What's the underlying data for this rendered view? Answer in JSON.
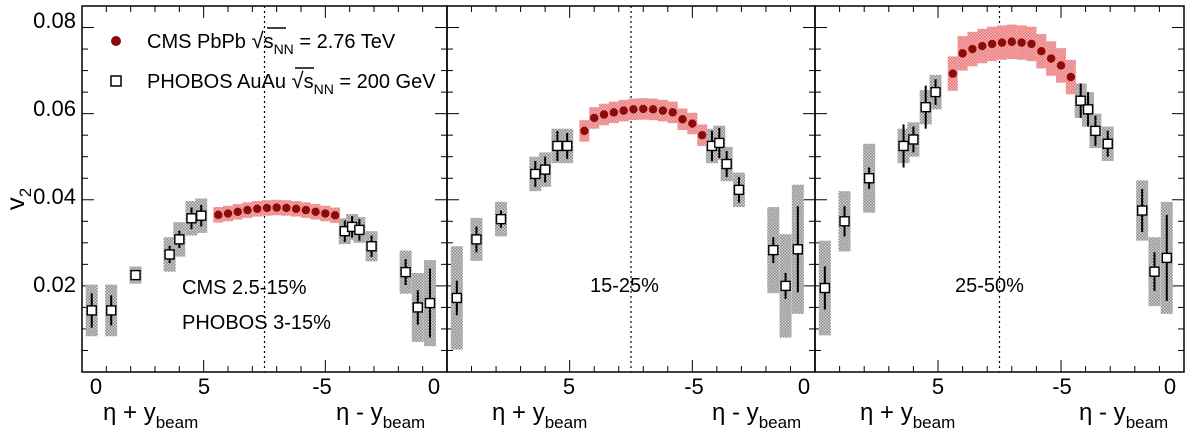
{
  "chart_data": {
    "type": "scatter",
    "ylabel": "v",
    "ylabel_sub": "2",
    "ylim": [
      0,
      0.085
    ],
    "yticks": [
      "0.02",
      "0.04",
      "0.06",
      "0.08"
    ],
    "xlabel_left": "η + y",
    "xlabel_right": "η - y",
    "xlabel_sub": "beam",
    "xticks_left": [
      "0",
      "5"
    ],
    "xticks_right": [
      "-5",
      "0"
    ],
    "legend": {
      "cms": {
        "pre": "CMS PbPb ",
        "s": "s",
        "sub": "NN",
        "post": " = 2.76 TeV",
        "color": "#8b0a0a"
      },
      "phobos": {
        "pre": "PHOBOS AuAu ",
        "s": "s",
        "sub": "NN",
        "post": " = 200 GeV"
      }
    },
    "colors": {
      "cms_marker": "#8b0a0a",
      "cms_band": "#f08080",
      "phobos_band": "#b5b5b5"
    },
    "panels": [
      {
        "labels": [
          "CMS 2.5-15%",
          "PHOBOS 3-15%"
        ],
        "cms": {
          "x": [
            5.6,
            6.0,
            6.4,
            6.8,
            7.2,
            7.6,
            8.0,
            8.4,
            8.8,
            9.2,
            9.6,
            10.0,
            10.4
          ],
          "y": [
            0.0365,
            0.0368,
            0.0372,
            0.0376,
            0.0379,
            0.0381,
            0.0382,
            0.0381,
            0.0379,
            0.0376,
            0.0372,
            0.0368,
            0.0364
          ],
          "sys": 0.0018
        },
        "phobos": {
          "x": [
            0.4,
            1.2,
            2.2,
            3.6,
            4.0,
            4.5,
            4.9,
            10.8,
            11.1,
            11.4,
            11.9,
            13.3,
            13.8,
            14.3
          ],
          "y": [
            0.0143,
            0.0143,
            0.0225,
            0.0273,
            0.0308,
            0.0357,
            0.0363,
            0.0327,
            0.0337,
            0.033,
            0.0292,
            0.0232,
            0.015,
            0.016
          ],
          "stat": [
            0.004,
            0.0035,
            0.001,
            0.002,
            0.002,
            0.0025,
            0.0025,
            0.0025,
            0.0025,
            0.0025,
            0.0025,
            0.003,
            0.004,
            0.008
          ],
          "sys": [
            0.006,
            0.006,
            0.002,
            0.004,
            0.004,
            0.004,
            0.004,
            0.003,
            0.003,
            0.003,
            0.0035,
            0.005,
            0.008,
            0.01
          ]
        }
      },
      {
        "labels": [
          "15-25%"
        ],
        "cms": {
          "x": [
            5.6,
            6.0,
            6.4,
            6.8,
            7.2,
            7.6,
            8.0,
            8.4,
            8.8,
            9.2,
            9.6,
            10.0,
            10.4
          ],
          "y": [
            0.056,
            0.059,
            0.0598,
            0.0603,
            0.0607,
            0.061,
            0.0611,
            0.061,
            0.0607,
            0.0603,
            0.0587,
            0.0577,
            0.055
          ],
          "sys": 0.0025
        },
        "phobos": {
          "x": [
            0.4,
            1.2,
            2.2,
            3.6,
            4.0,
            4.5,
            4.9,
            10.8,
            11.1,
            11.4,
            11.9,
            13.3,
            13.8,
            14.3
          ],
          "y": [
            0.0172,
            0.0308,
            0.0355,
            0.046,
            0.047,
            0.0525,
            0.0525,
            0.0525,
            0.0532,
            0.0483,
            0.0423,
            0.0283,
            0.02,
            0.0285
          ],
          "stat": [
            0.004,
            0.003,
            0.002,
            0.003,
            0.003,
            0.0035,
            0.003,
            0.0035,
            0.0035,
            0.003,
            0.003,
            0.003,
            0.003,
            0.01
          ],
          "sys": [
            0.012,
            0.005,
            0.004,
            0.004,
            0.004,
            0.004,
            0.004,
            0.004,
            0.004,
            0.004,
            0.004,
            0.01,
            0.012,
            0.015
          ]
        }
      },
      {
        "labels": [
          "25-50%"
        ],
        "cms": {
          "x": [
            5.6,
            6.0,
            6.4,
            6.8,
            7.2,
            7.6,
            8.0,
            8.4,
            8.8,
            9.2,
            9.6,
            10.0,
            10.4
          ],
          "y": [
            0.0693,
            0.074,
            0.075,
            0.0757,
            0.0762,
            0.0765,
            0.0767,
            0.0765,
            0.0762,
            0.0745,
            0.0728,
            0.0712,
            0.0685
          ],
          "sys": 0.004
        },
        "phobos": {
          "x": [
            0.4,
            1.2,
            2.2,
            3.6,
            4.0,
            4.5,
            4.9,
            10.8,
            11.1,
            11.4,
            11.9,
            13.3,
            13.8,
            14.3
          ],
          "y": [
            0.0195,
            0.035,
            0.045,
            0.0525,
            0.054,
            0.0615,
            0.065,
            0.063,
            0.061,
            0.056,
            0.053,
            0.0375,
            0.0233,
            0.0265
          ],
          "stat": [
            0.005,
            0.0035,
            0.0025,
            0.005,
            0.003,
            0.005,
            0.003,
            0.004,
            0.004,
            0.0035,
            0.003,
            0.005,
            0.0045,
            0.01
          ],
          "sys": [
            0.011,
            0.007,
            0.008,
            0.004,
            0.004,
            0.004,
            0.004,
            0.004,
            0.004,
            0.004,
            0.004,
            0.007,
            0.008,
            0.013
          ]
        }
      }
    ]
  }
}
